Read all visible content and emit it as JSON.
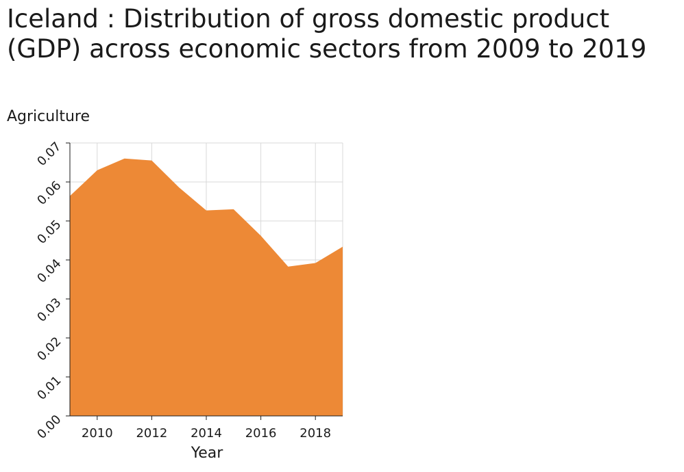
{
  "chart_data": {
    "type": "area",
    "title": "Iceland : Distribution of gross domestic product (GDP) across economic sectors from 2009 to 2019",
    "ylabel": "Agriculture",
    "xlabel": "Year",
    "x": [
      2009,
      2010,
      2011,
      2012,
      2013,
      2014,
      2015,
      2016,
      2017,
      2018,
      2019
    ],
    "series": [
      {
        "values": [
          0.0564,
          0.063,
          0.066,
          0.0655,
          0.0586,
          0.0527,
          0.053,
          0.0462,
          0.0383,
          0.0392,
          0.0434
        ]
      }
    ],
    "xlim": [
      2009,
      2019
    ],
    "ylim": [
      0,
      0.07
    ],
    "xticks": [
      "2010",
      "2012",
      "2014",
      "2016",
      "2018"
    ],
    "yticks": [
      "0.00",
      "0.01",
      "0.02",
      "0.03",
      "0.04",
      "0.05",
      "0.06",
      "0.07"
    ],
    "grid": true,
    "fill_color": "#ed8936"
  }
}
